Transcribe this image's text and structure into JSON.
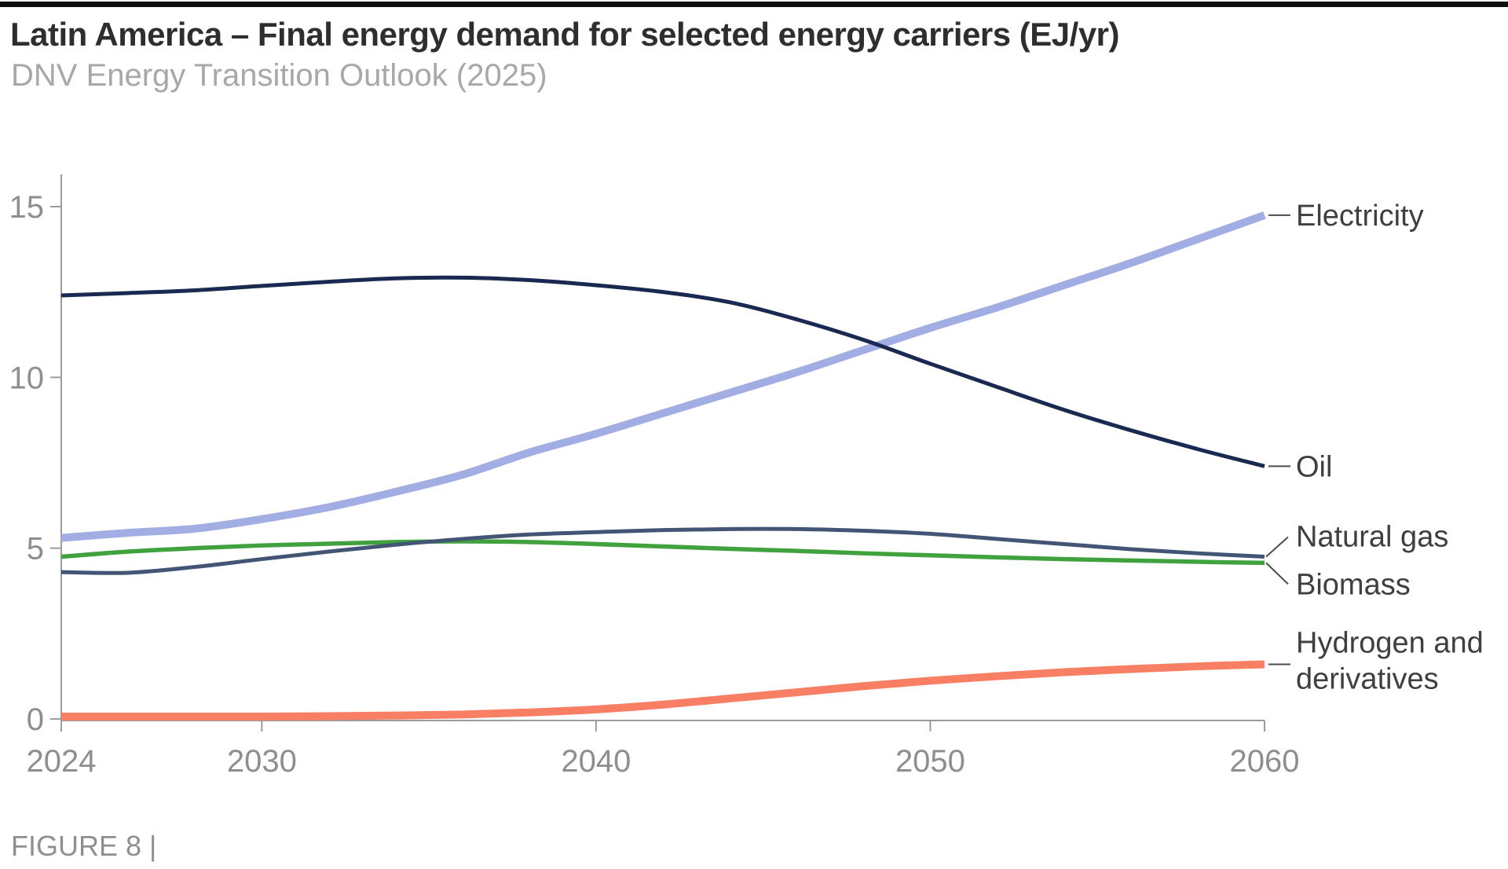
{
  "page": {
    "title": "Latin America – Final energy demand for selected energy carriers (EJ/yr)",
    "subtitle": "DNV Energy Transition Outlook (2025)",
    "figure_caption": "FIGURE 8 |"
  },
  "colors": {
    "top_bar": "#0d0d0d",
    "title_text": "#2e2e2e",
    "subtitle_text": "#a8a8a8",
    "axis": "#9b9b9b",
    "tick_label": "#8e8e8e",
    "series_label_text": "#3f3f3f",
    "connector": "#4d4d4d",
    "caption_text": "#8f8f8f",
    "electricity": "#a2ade3",
    "oil": "#1a2951",
    "natural_gas": "#435575",
    "biomass": "#3fa23e",
    "hydrogen": "#f87e64"
  },
  "chart_data": {
    "type": "line",
    "title": "Latin America – Final energy demand for selected energy carriers (EJ/yr)",
    "subtitle": "DNV Energy Transition Outlook (2025)",
    "units": "EJ/yr",
    "xlabel": "",
    "ylabel": "",
    "xlim": [
      2024,
      2060
    ],
    "ylim": [
      0,
      16
    ],
    "grid": false,
    "legend_position": "right-edge-annotations",
    "x_ticks": [
      2024,
      2030,
      2040,
      2050,
      2060
    ],
    "y_ticks": [
      0,
      5,
      10,
      15
    ],
    "x": [
      2024,
      2026,
      2028,
      2030,
      2032,
      2034,
      2036,
      2038,
      2040,
      2042,
      2044,
      2046,
      2048,
      2050,
      2052,
      2054,
      2056,
      2058,
      2060
    ],
    "series": [
      {
        "name": "Electricity",
        "label_lines": [
          "Electricity"
        ],
        "color": "#a2ade3",
        "stroke_width": 10,
        "connector": "horizontal",
        "values": [
          5.3,
          5.45,
          5.57,
          5.85,
          6.2,
          6.65,
          7.15,
          7.8,
          8.35,
          8.95,
          9.55,
          10.15,
          10.8,
          11.45,
          12.05,
          12.7,
          13.35,
          14.05,
          14.75
        ]
      },
      {
        "name": "Hydrogen and derivatives",
        "label_lines": [
          "Hydrogen and",
          "derivatives"
        ],
        "color": "#f87e64",
        "stroke_width": 10,
        "connector": "horizontal",
        "values": [
          0.07,
          0.07,
          0.07,
          0.07,
          0.08,
          0.1,
          0.13,
          0.19,
          0.28,
          0.42,
          0.6,
          0.78,
          0.96,
          1.12,
          1.25,
          1.37,
          1.46,
          1.54,
          1.6
        ]
      },
      {
        "name": "Biomass",
        "label_lines": [
          "Biomass"
        ],
        "color": "#3fa23e",
        "stroke_width": 5.5,
        "connector": "down",
        "values": [
          4.75,
          4.9,
          5.0,
          5.08,
          5.13,
          5.18,
          5.2,
          5.18,
          5.12,
          5.05,
          4.98,
          4.92,
          4.85,
          4.79,
          4.73,
          4.68,
          4.64,
          4.6,
          4.57
        ]
      },
      {
        "name": "Natural gas",
        "label_lines": [
          "Natural gas"
        ],
        "color": "#435575",
        "stroke_width": 5,
        "connector": "up",
        "values": [
          4.3,
          4.28,
          4.45,
          4.68,
          4.9,
          5.1,
          5.27,
          5.4,
          5.47,
          5.53,
          5.56,
          5.56,
          5.51,
          5.42,
          5.27,
          5.12,
          4.97,
          4.85,
          4.75
        ]
      },
      {
        "name": "Oil",
        "label_lines": [
          "Oil"
        ],
        "color": "#1a2951",
        "stroke_width": 5,
        "connector": "horizontal",
        "values": [
          12.4,
          12.47,
          12.55,
          12.68,
          12.8,
          12.9,
          12.92,
          12.85,
          12.7,
          12.5,
          12.2,
          11.7,
          11.1,
          10.4,
          9.72,
          9.05,
          8.45,
          7.9,
          7.4
        ]
      }
    ]
  }
}
